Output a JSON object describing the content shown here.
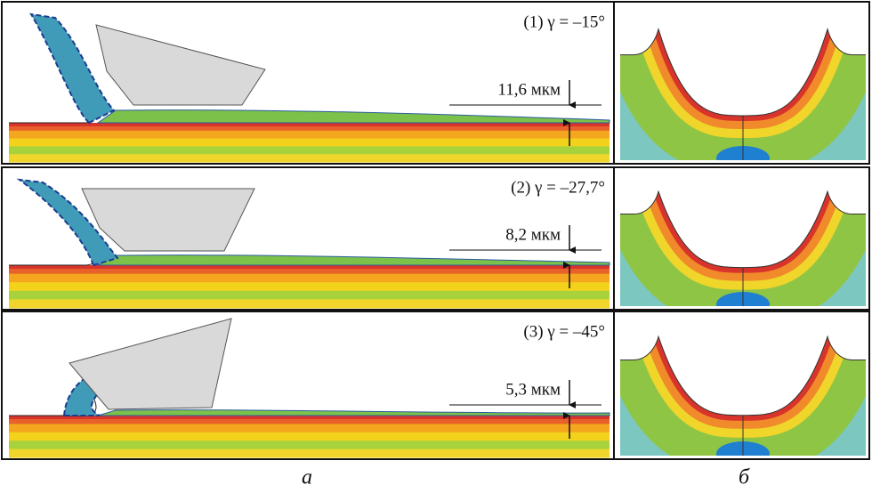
{
  "panel_a": {
    "rows": [
      {
        "label": "(1) γ = –15°",
        "thickness": "11,6 мкм"
      },
      {
        "label": "(2) γ = –27,7°",
        "thickness": "8,2 мкм"
      },
      {
        "label": "(3) γ = –45°",
        "thickness": "5,3 мкм"
      }
    ],
    "caption": "а"
  },
  "panel_b": {
    "caption": "б"
  }
}
